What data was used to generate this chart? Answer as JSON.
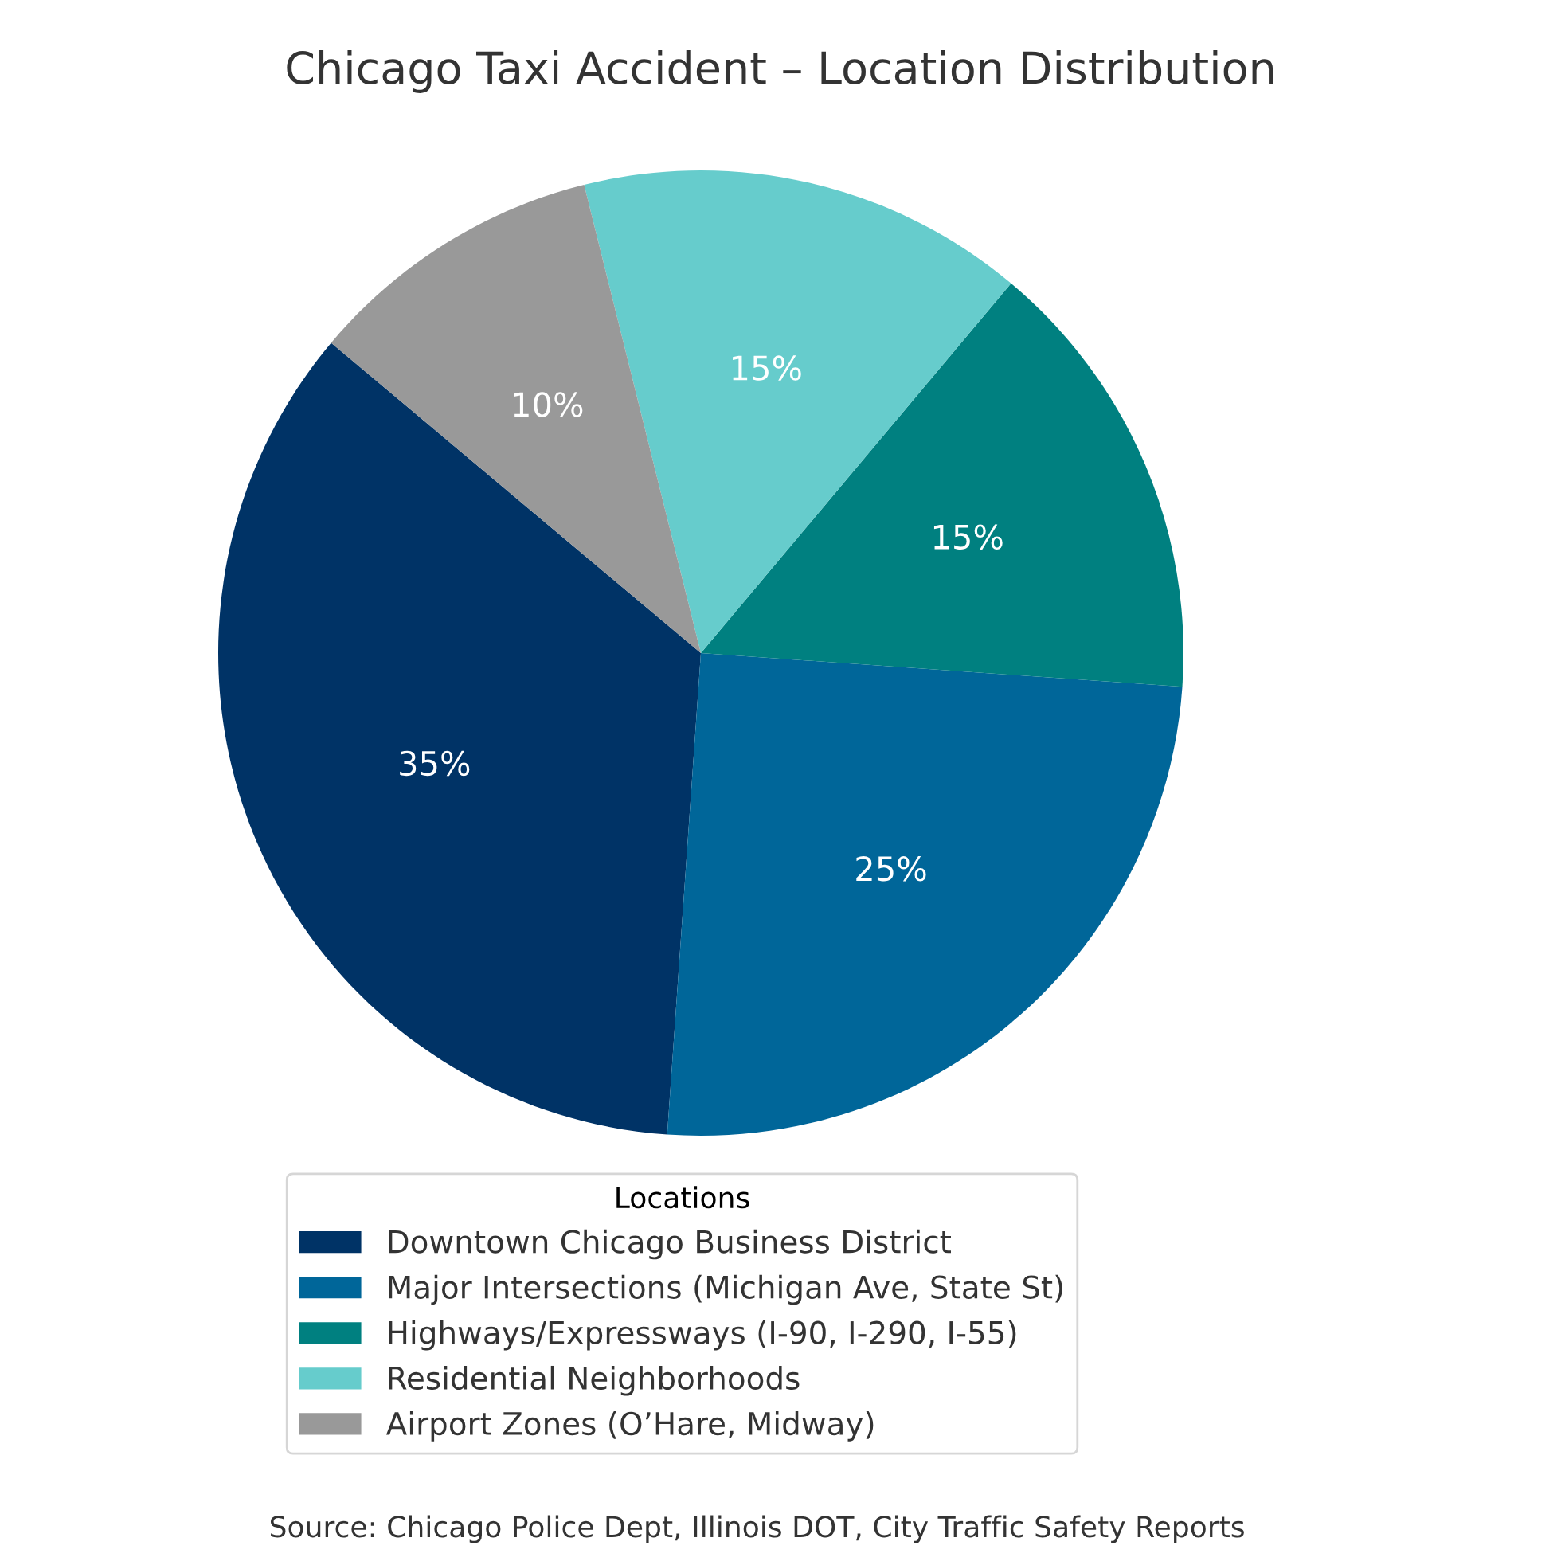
{
  "chart_data": {
    "type": "pie",
    "title": "Chicago Taxi Accident – Location Distribution",
    "categories": [
      "Downtown Chicago Business District",
      "Major Intersections (Michigan Ave, State St)",
      "Highways/Expressways (I-90, I-290, I-55)",
      "Residential Neighborhoods",
      "Airport Zones (O’Hare, Midway)"
    ],
    "values": [
      35,
      25,
      15,
      15,
      10
    ],
    "colors": [
      "#003366",
      "#006699",
      "#008080",
      "#66cccc",
      "#999999"
    ],
    "value_labels": [
      "35%",
      "25%",
      "15%",
      "15%",
      "10%"
    ],
    "legend": "bottom",
    "legend_title": "Locations",
    "annotations": [
      "Source: Chicago Police Dept, Illinois DOT, City Traffic Safety Reports"
    ]
  }
}
